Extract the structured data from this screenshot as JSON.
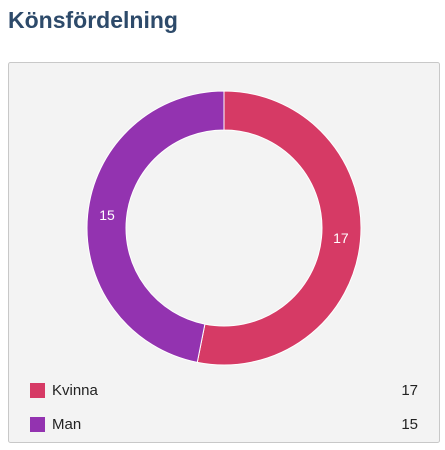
{
  "chart_data": {
    "type": "donut",
    "title": "Könsfördelning",
    "categories": [
      "Kvinna",
      "Man"
    ],
    "values": [
      17,
      15
    ],
    "colors": [
      "#d63a65",
      "#9333b0"
    ],
    "legend": "bottom"
  }
}
